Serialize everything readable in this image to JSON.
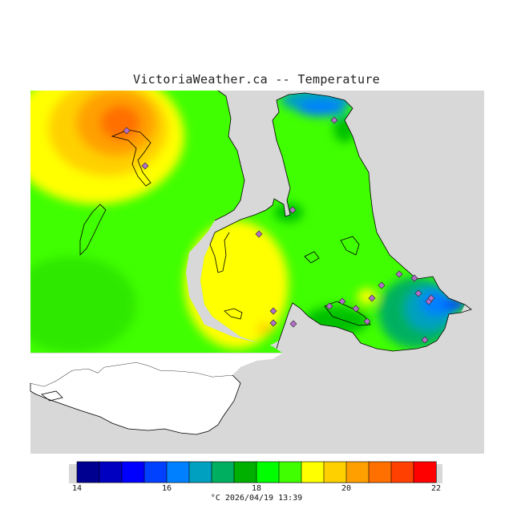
{
  "header": {
    "site": "VictoriaWeather.ca",
    "separator": "--",
    "variable": "Temperature"
  },
  "colorbar": {
    "min": 14,
    "max": 22,
    "tick_labels": [
      "14",
      "16",
      "18",
      "20",
      "22"
    ],
    "unit": "°C",
    "colors": [
      "#000090",
      "#0000c0",
      "#0000ff",
      "#0040ff",
      "#0080ff",
      "#00a0c0",
      "#00b060",
      "#00b000",
      "#00ff00",
      "#40ff00",
      "#ffff00",
      "#ffd000",
      "#ffa000",
      "#ff7000",
      "#ff4000",
      "#ff0000"
    ]
  },
  "footer": {
    "unit": "°C",
    "timestamp": "2026/04/19 13:39"
  },
  "map_colors": {
    "ocean": "#d8d8d8",
    "outline": "#000000",
    "station_marker": "#b46ecb"
  }
}
